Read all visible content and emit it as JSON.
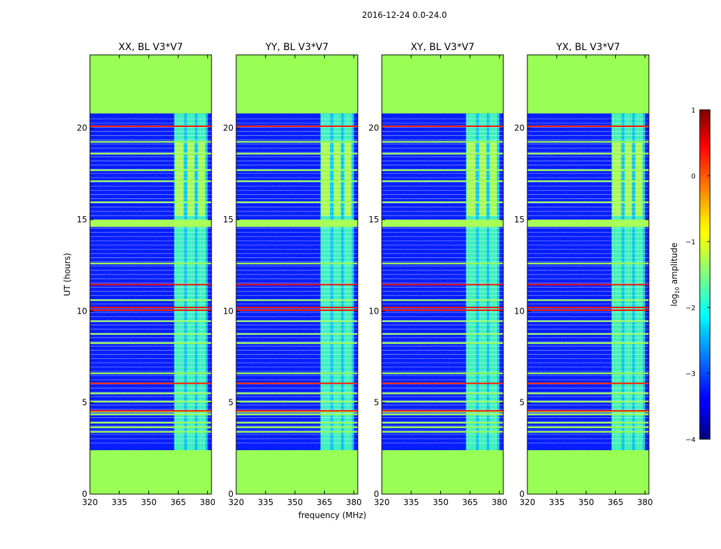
{
  "suptitle": "2016-12-24 0.0-24.0",
  "chart_data": {
    "type": "heatmap",
    "x": {
      "label": "frequency (MHz)",
      "range": [
        320,
        382
      ],
      "ticks": [
        320,
        335,
        350,
        365,
        380
      ]
    },
    "y": {
      "label": "UT (hours)",
      "range": [
        0,
        24
      ],
      "ticks": [
        0,
        5,
        10,
        15,
        20
      ]
    },
    "panels": [
      {
        "title": "XX, BL V3*V7"
      },
      {
        "title": "YY, BL V3*V7"
      },
      {
        "title": "XY, BL V3*V7"
      },
      {
        "title": "YX, BL V3*V7"
      }
    ],
    "data_extent_hours": [
      2.4,
      20.8
    ],
    "masked_fill_color": "#99ff55",
    "background_level": -3.3,
    "rfi_band_mhz": [
      363,
      380
    ],
    "rfi_subbands_mhz": [
      [
        363,
        368
      ],
      [
        369.5,
        373.5
      ],
      [
        375,
        379
      ]
    ],
    "flagged_rows_hours": [
      3.4,
      3.65,
      3.9,
      4.35,
      4.5,
      5.05,
      5.5,
      6.05,
      6.6,
      8.25,
      8.75,
      9.45,
      10.05,
      10.6,
      12.6,
      14.8,
      15.95,
      17.1,
      17.7,
      18.6,
      19.25,
      20.1
    ],
    "highlight_rows_hours": [
      4.55,
      6.05,
      10.05,
      10.2,
      11.45,
      20.1
    ],
    "colorbar": {
      "label": "log",
      "label_sub": "10",
      "label_rest": " amplitude",
      "range": [
        -4,
        1
      ],
      "ticks": [
        1,
        0,
        -1,
        -2,
        -3,
        -4
      ],
      "tick_labels": [
        "1",
        "0",
        "−1",
        "−2",
        "−3",
        "−4"
      ],
      "colormap": "jet"
    }
  }
}
